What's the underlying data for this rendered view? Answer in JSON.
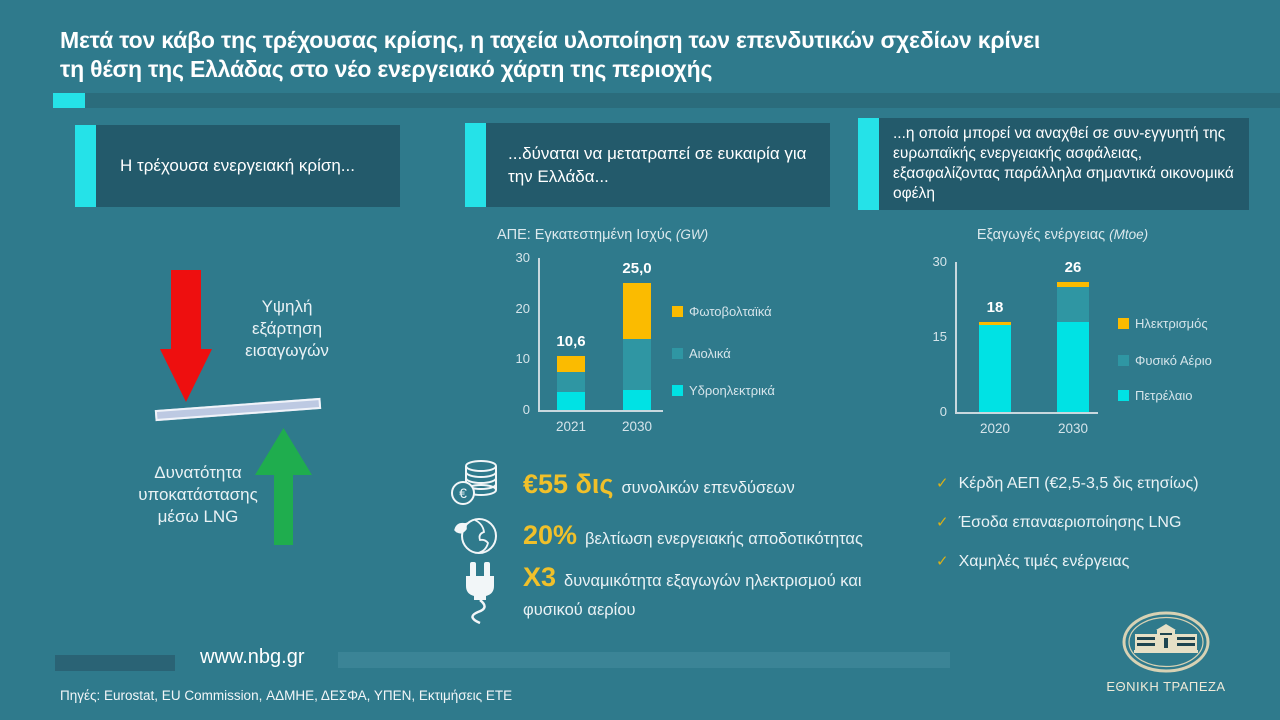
{
  "title_lines": [
    "Μετά τον κάβο της τρέχουσας κρίσης, η ταχεία υλοποίηση των επενδυτικών σχεδίων κρίνει",
    "τη θέση της Ελλάδας στο νέο ενεργειακό χάρτη της περιοχής"
  ],
  "headers": [
    {
      "label": "Η τρέχουσα ενεργειακή κρίση..."
    },
    {
      "label": "...δύναται να μετατραπεί σε ευκαιρία για την Ελλάδα..."
    },
    {
      "label": "...η οποία μπορεί να αναχθεί σε συν-εγγυητή της ευρωπαϊκής ενεργειακής ασφάλειας, εξασφαλίζοντας παράλληλα σημαντικά οικονομικά οφέλη"
    }
  ],
  "left_panel": {
    "down_label": "Υψηλή εξάρτηση εισαγωγών",
    "up_label": "Δυνατότητα υποκατάστασης μέσω LNG"
  },
  "chart_data": [
    {
      "type": "bar",
      "stacked": true,
      "title": "ΑΠΕ: Εγκατεστημένη Ισχύς",
      "unit": "(GW)",
      "categories": [
        "2021",
        "2030"
      ],
      "totals": [
        "10,6",
        "25,0"
      ],
      "series": [
        {
          "name": "Φωτοβολταϊκά",
          "color": "#FBBB00",
          "values": [
            3.1,
            11.0
          ]
        },
        {
          "name": "Αιολικά",
          "color": "#2F96A3",
          "values": [
            4.0,
            10.0
          ]
        },
        {
          "name": "Υδροηλεκτρικά",
          "color": "#00E2E4",
          "values": [
            3.5,
            4.0
          ]
        }
      ],
      "ylim": [
        0,
        30
      ],
      "yticks": [
        0,
        10,
        20,
        30
      ],
      "legend_position": "right",
      "grid": false
    },
    {
      "type": "bar",
      "stacked": true,
      "title": "Εξαγωγές ενέργειας",
      "unit": "(Mtoe)",
      "categories": [
        "2020",
        "2030"
      ],
      "totals": [
        "18",
        "26"
      ],
      "series": [
        {
          "name": "Ηλεκτρισμός",
          "color": "#FBBB00",
          "values": [
            0.5,
            1.0
          ]
        },
        {
          "name": "Φυσικό Αέριο",
          "color": "#2F96A3",
          "values": [
            0,
            7.0
          ]
        },
        {
          "name": "Πετρέλαιο",
          "color": "#00E2E4",
          "values": [
            17.5,
            18.0
          ]
        }
      ],
      "ylim": [
        0,
        30
      ],
      "yticks": [
        0,
        15,
        30
      ],
      "legend_position": "right",
      "grid": false
    }
  ],
  "stats": [
    {
      "icon": "euro-coins-icon",
      "value": "€55 δις",
      "label": "συνολικών επενδύσεων"
    },
    {
      "icon": "globe-leaf-icon",
      "value": "20%",
      "label": "βελτίωση ενεργειακής αποδοτικότητας"
    },
    {
      "icon": "plug-icon",
      "value": "X3",
      "label": "δυναμικότητα εξαγωγών ηλεκτρισμού και φυσικού αερίου"
    }
  ],
  "benefits": [
    "Κέρδη ΑΕΠ (€2,5-3,5 δις ετησίως)",
    "Έσοδα επαναεριοποίησης LNG",
    "Χαμηλές τιμές ενέργειας"
  ],
  "footer": {
    "url": "www.nbg.gr",
    "sources": "Πηγές: Eurostat, EU Commission, ΑΔΜΗΕ, ΔΕΣΦΑ, ΥΠΕΝ, Εκτιμήσεις ΕΤΕ",
    "bank": "ΕΘΝΙΚΗ ΤΡΑΠΕΖΑ"
  },
  "icons": {
    "check": "✓"
  },
  "colors": {
    "background": "#2F7A8C",
    "panel": "#235A6B",
    "accent_cyan": "#25E2E8",
    "gold": "#FBBB00",
    "gold_text": "#F0C02A",
    "red": "#EE0F0F",
    "green": "#1FAD4E",
    "divider": "#BDC9E2"
  }
}
